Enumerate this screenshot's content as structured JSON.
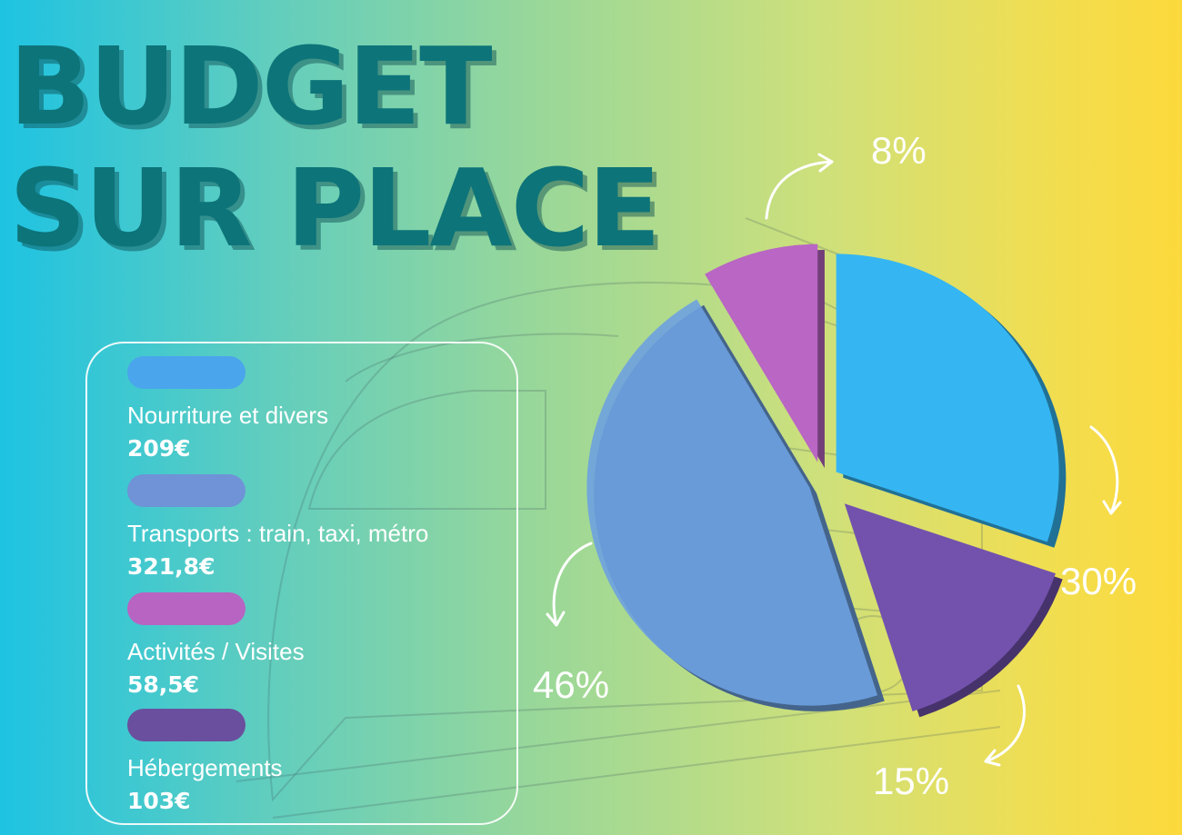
{
  "title": {
    "line1": "BUDGET",
    "line2": "SUR PLACE"
  },
  "chart_data": {
    "type": "pie",
    "title": "BUDGET SUR PLACE",
    "slices": [
      {
        "label": "Nourriture et divers",
        "value": 209,
        "value_text": "209€",
        "percent": 30,
        "percent_text": "30%",
        "color": "#35b6f2"
      },
      {
        "label": "Transports : train, taxi, métro",
        "value": 321.8,
        "value_text": "321,8€",
        "percent": 46,
        "percent_text": "46%",
        "color": "#6ea1e0"
      },
      {
        "label": "Activités / Visites",
        "value": 58.5,
        "value_text": "58,5€",
        "percent": 8,
        "percent_text": "8%",
        "color": "#b966c4"
      },
      {
        "label": "Hébergements",
        "value": 103,
        "value_text": "103€",
        "percent": 15,
        "percent_text": "15%",
        "color": "#7352ad"
      }
    ],
    "legend_position": "left"
  }
}
